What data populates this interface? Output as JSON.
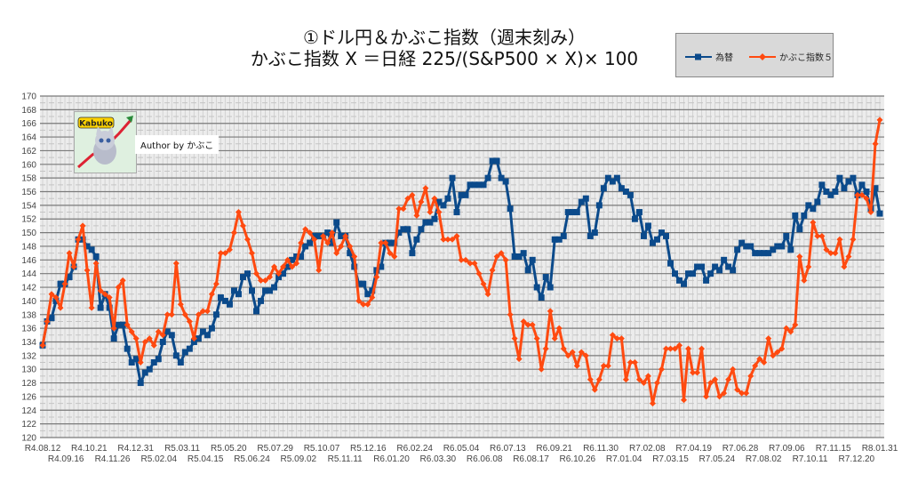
{
  "chart_data": {
    "type": "line",
    "title": [
      "①ドル円＆かぶこ指数（週末刻み）",
      "かぶこ指数 X ＝日経 225/(S&P500 × X)× 100"
    ],
    "xlabel": "",
    "ylabel": "",
    "ylim": [
      120,
      170
    ],
    "ytick_step": 2,
    "grid": true,
    "legend_position": "top-right",
    "x_tick_labels": [
      "R4.08.12",
      "R4.09.16",
      "R4.10.21",
      "R4.11.26",
      "R4.12.31",
      "R5.02.04",
      "R5.03.11",
      "R5.04.15",
      "R5.05.20",
      "R5.06.24",
      "R5.07.29",
      "R5.09.02",
      "R5.10.07",
      "R5.11.11",
      "R5.12.16",
      "R6.01.20",
      "R6.02.24",
      "R6.03.30",
      "R6.05.04",
      "R6.06.08",
      "R6.07.13",
      "R6.08.17",
      "R6.09.21",
      "R6.10.26",
      "R6.11.30",
      "R7.01.04",
      "R7.02.08",
      "R7.03.15",
      "R7.04.19",
      "R7.05.24",
      "R7.06.28",
      "R7.08.02",
      "R7.09.06",
      "R7.10.11",
      "R7.11.15",
      "R7.12.20",
      "R8.01.31"
    ],
    "series": [
      {
        "name": "為替",
        "color": "#0b4a8b",
        "marker": "square",
        "values": [
          133.5,
          137,
          137.5,
          140,
          142.5,
          142.5,
          143.5,
          145,
          149,
          149,
          148,
          147.5,
          146.5,
          139,
          141,
          139,
          134.5,
          136.5,
          136.5,
          133,
          131,
          131.5,
          128,
          129.5,
          130,
          131,
          131.5,
          134,
          135.5,
          135,
          132,
          131,
          132.5,
          133,
          134,
          134.5,
          135.5,
          135,
          136,
          138,
          140.5,
          140,
          139.5,
          141.5,
          141,
          143.5,
          144,
          141.5,
          138.5,
          140,
          141.5,
          141.5,
          142,
          143.5,
          144,
          145,
          146,
          146.5,
          146.5,
          148,
          148.5,
          149.5,
          149.5,
          149.5,
          150,
          148.5,
          151.5,
          149.5,
          149.5,
          147,
          145,
          142.5,
          142.5,
          141,
          141.5,
          144.5,
          145,
          148.5,
          148.5,
          148.5,
          150,
          150.5,
          150.5,
          147,
          149,
          150.5,
          151.5,
          151.5,
          152,
          154.5,
          154,
          155,
          158,
          153,
          155.5,
          155.5,
          157,
          157,
          157,
          157,
          158,
          160.5,
          160.5,
          158,
          157.5,
          153.5,
          146.5,
          146.5,
          147,
          144.5,
          146,
          142,
          140.5,
          143.5,
          142,
          149,
          149,
          149.5,
          153,
          153,
          153,
          154.5,
          155,
          149.5,
          150,
          154,
          156.5,
          158,
          157.5,
          158,
          156.5,
          156,
          155.5,
          152,
          153,
          149.5,
          151,
          148.5,
          149,
          150,
          149.5,
          145.5,
          144,
          143,
          142.5,
          144,
          144,
          145,
          145,
          143,
          144,
          145,
          144.5,
          146,
          145,
          144.5,
          147.5,
          148.5,
          148,
          148,
          147,
          147,
          147,
          147,
          147.5,
          148,
          148,
          149.5,
          147.5,
          152.5,
          150.5,
          152.5,
          154,
          153.5,
          154.5,
          157,
          156,
          155.5,
          156,
          158,
          156.5,
          157.5,
          158,
          155.5,
          157,
          156,
          153.5,
          156.5,
          152.8
        ]
      },
      {
        "name": "かぶこ指数５",
        "color": "#ff4a10",
        "marker": "diamond",
        "values": [
          133.5,
          137,
          141,
          140.5,
          139,
          142.5,
          147,
          145,
          149,
          151,
          144.5,
          139,
          145.5,
          141.5,
          141,
          140.5,
          136,
          142,
          143,
          136.5,
          135.5,
          134.5,
          131,
          134,
          134.5,
          133.5,
          135.5,
          135,
          138,
          138,
          145.5,
          139.5,
          138,
          137,
          134.5,
          138,
          138.5,
          138.5,
          141,
          142.5,
          147,
          147,
          147.5,
          150,
          153,
          151,
          149,
          147,
          144,
          143,
          143,
          143.5,
          145,
          144,
          145,
          146,
          145,
          145.5,
          148.5,
          150.5,
          150,
          149,
          144.5,
          149.5,
          148.5,
          150,
          147,
          148,
          149.5,
          148,
          146.5,
          140,
          139.5,
          139.5,
          140.5,
          143.5,
          148.5,
          148.5,
          147,
          146.5,
          153.5,
          153.5,
          155,
          155.5,
          152.5,
          154.5,
          156.5,
          153,
          155,
          153,
          149,
          149,
          149,
          149.5,
          146,
          146,
          145.5,
          145.5,
          144,
          142.5,
          141,
          144.5,
          146.5,
          147,
          146,
          138,
          134.5,
          131.5,
          137,
          136.5,
          136.5,
          134.5,
          130,
          133,
          138.5,
          134.5,
          136,
          133,
          132,
          132.5,
          130.5,
          132.5,
          132,
          128.5,
          127,
          128.5,
          130.5,
          130.5,
          135,
          134.5,
          134.5,
          128.5,
          131,
          131,
          128.5,
          128,
          129,
          125,
          128,
          130,
          133,
          133,
          133,
          133.5,
          125.5,
          133,
          129.5,
          129.5,
          133,
          126,
          128,
          128.5,
          126,
          126.5,
          128.5,
          130,
          127,
          126.5,
          126.5,
          129,
          130.5,
          131.5,
          131,
          134.5,
          132,
          132.5,
          133,
          136,
          135.5,
          136.5,
          146.5,
          143,
          145,
          151.5,
          149.5,
          149.5,
          147.5,
          147,
          147,
          149,
          145,
          146.5,
          149,
          155.5,
          155.5,
          155,
          153,
          163,
          166.5
        ]
      }
    ]
  },
  "legend": {
    "items": [
      "為替",
      "かぶこ指数５"
    ]
  },
  "logo": {
    "text": "Kabuko"
  },
  "author": "Author by かぶこ"
}
